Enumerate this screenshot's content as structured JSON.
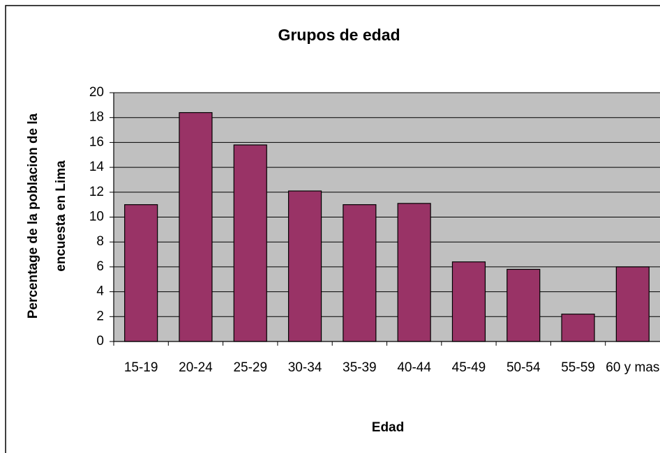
{
  "chart_data": {
    "type": "bar",
    "title": "Grupos de edad",
    "xlabel": "Edad",
    "ylabel": [
      "Percentage de la poblacion de la",
      "encuesta en Lima"
    ],
    "categories": [
      "15-19",
      "20-24",
      "25-29",
      "30-34",
      "35-39",
      "40-44",
      "45-49",
      "50-54",
      "55-59",
      "60 y mas"
    ],
    "values": [
      11,
      18.4,
      15.8,
      12.1,
      11,
      11.1,
      6.4,
      5.8,
      2.2,
      6.0
    ],
    "color": "#993366",
    "ylim": [
      0,
      20
    ],
    "yticks": [
      0,
      2,
      4,
      6,
      8,
      10,
      12,
      14,
      16,
      18,
      20
    ],
    "grid": true
  }
}
